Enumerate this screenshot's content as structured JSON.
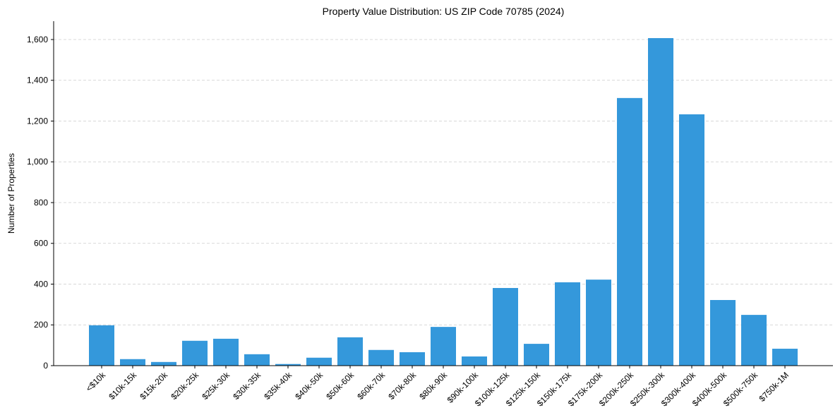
{
  "chart_data": {
    "type": "bar",
    "title": "Property Value Distribution: US ZIP Code 70785 (2024)",
    "xlabel": "",
    "ylabel": "Number of Properties",
    "categories": [
      "<$10k",
      "$10k-15k",
      "$15k-20k",
      "$20k-25k",
      "$25k-30k",
      "$30k-35k",
      "$35k-40k",
      "$40k-50k",
      "$50k-60k",
      "$60k-70k",
      "$70k-80k",
      "$80k-90k",
      "$90k-100k",
      "$100k-125k",
      "$125k-150k",
      "$150k-175k",
      "$175k-200k",
      "$200k-250k",
      "$250k-300k",
      "$300k-400k",
      "$400k-500k",
      "$500k-750k",
      "$750k-1M"
    ],
    "values": [
      198,
      32,
      18,
      122,
      132,
      56,
      8,
      39,
      139,
      77,
      66,
      190,
      45,
      381,
      107,
      409,
      422,
      1313,
      1607,
      1233,
      322,
      249,
      83
    ],
    "ylim": [
      0,
      1690
    ],
    "yticks": [
      0,
      200,
      400,
      600,
      800,
      1000,
      1200,
      1400,
      1600
    ],
    "ytick_labels": [
      "0",
      "200",
      "400",
      "600",
      "800",
      "1,000",
      "1,200",
      "1,400",
      "1,600"
    ],
    "grid": "y-dashed",
    "bar_color": "#3498db",
    "grid_color": "#cccccc"
  }
}
